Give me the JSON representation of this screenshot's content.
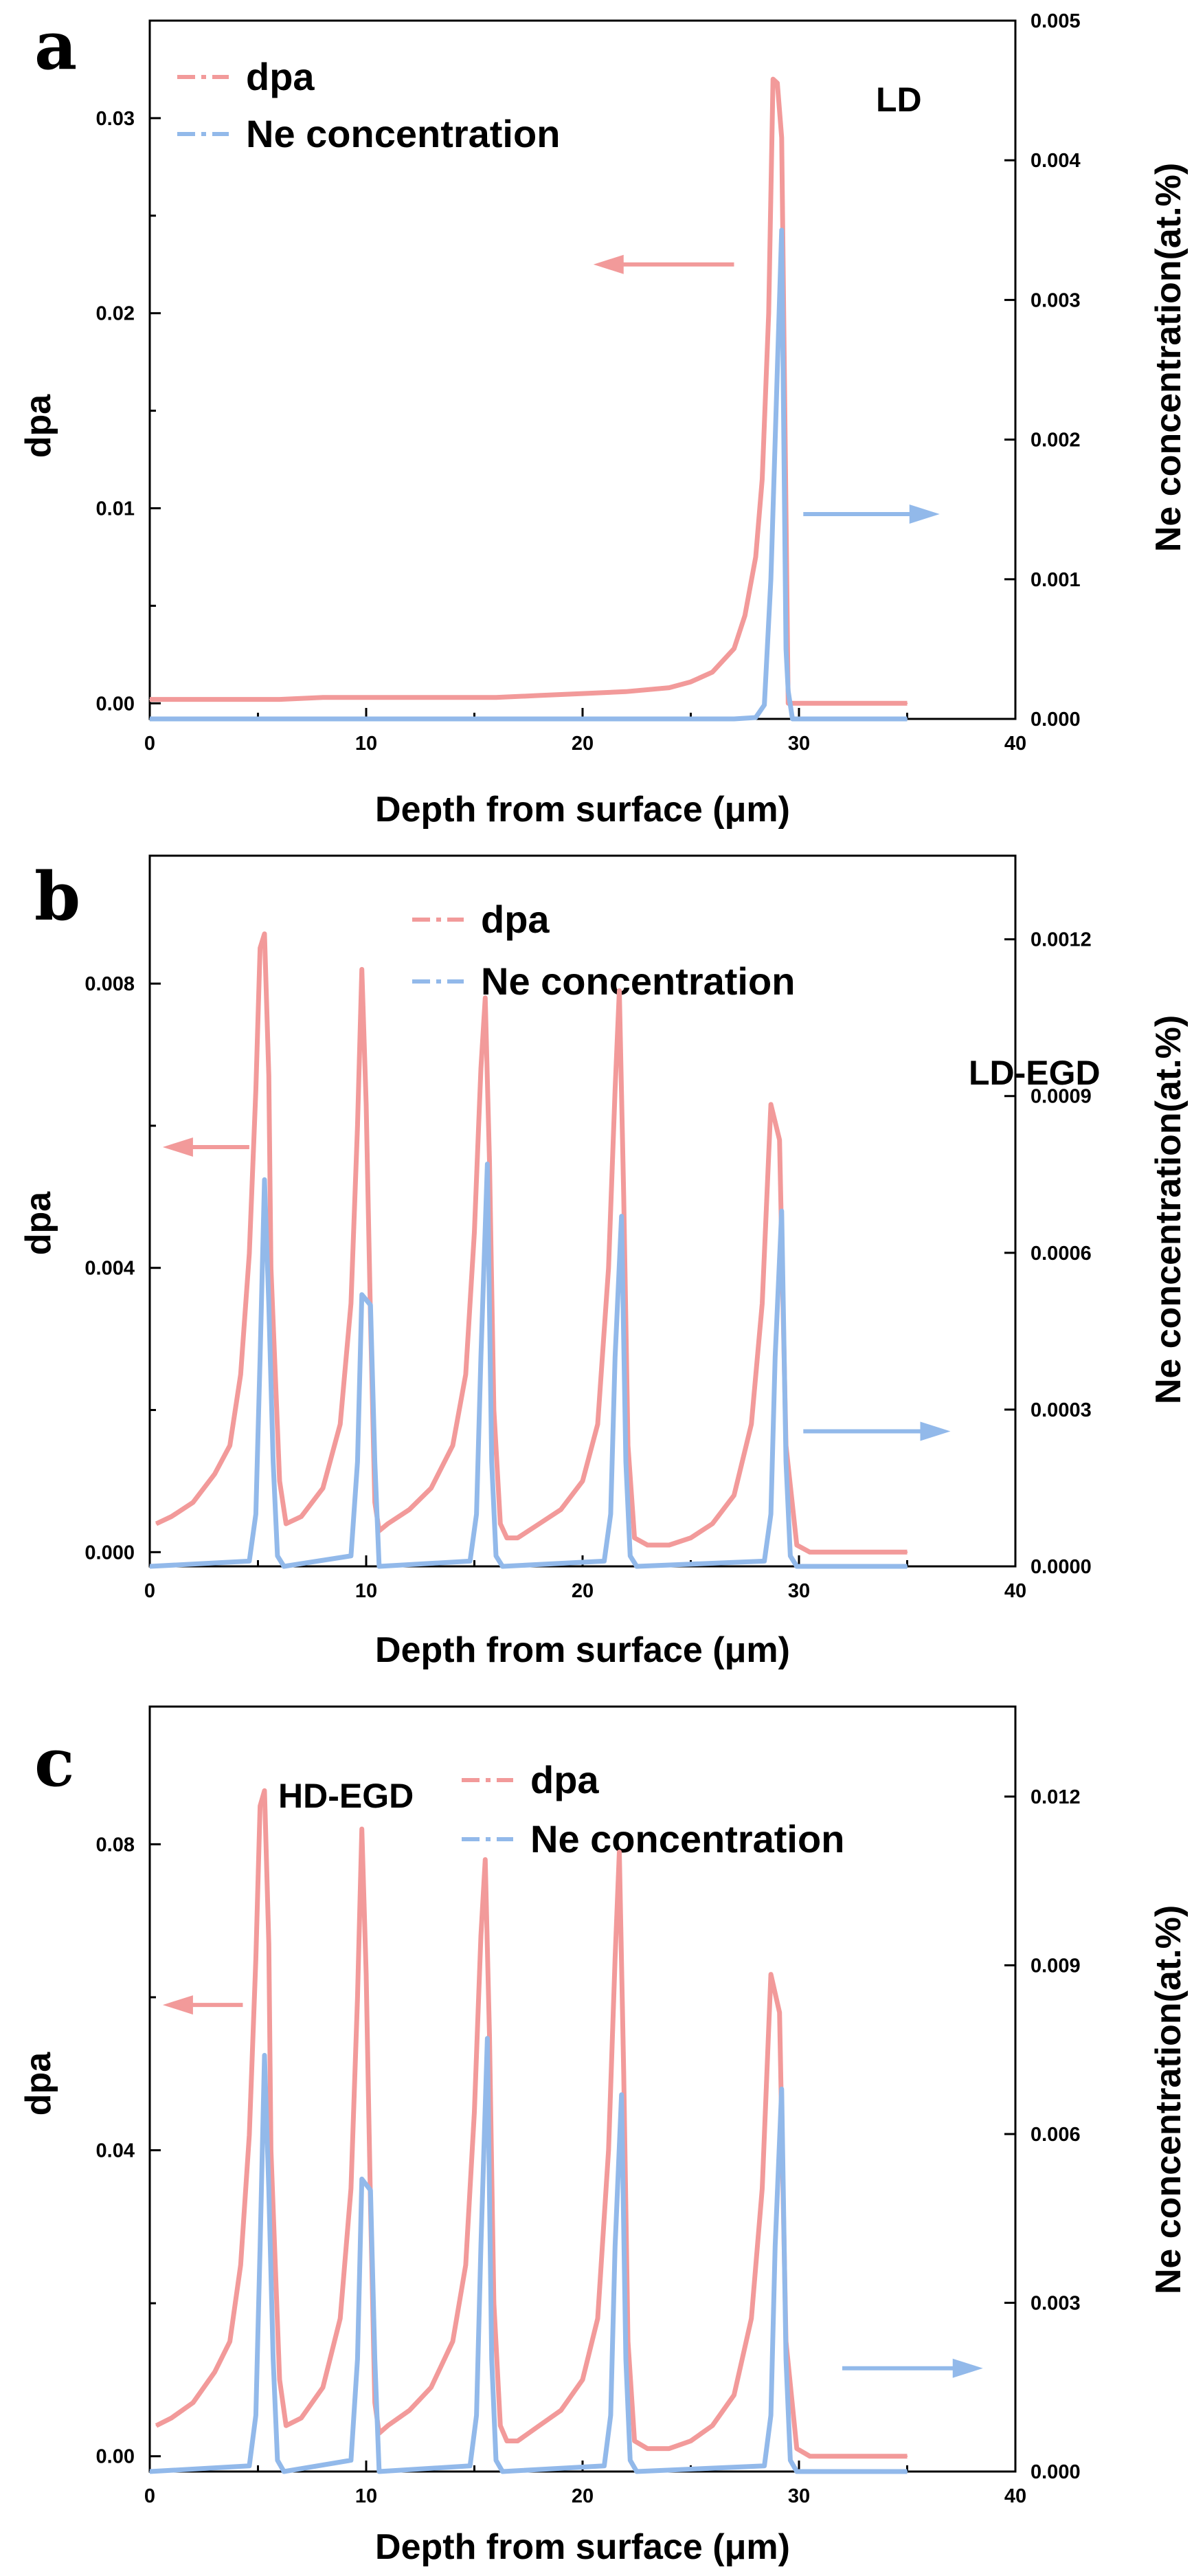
{
  "colors": {
    "dpa": "#f29a9a",
    "ne": "#92b9ea",
    "axis": "#000000"
  },
  "chart_data": [
    {
      "panel": "a",
      "type": "line",
      "annotation": "LD",
      "xlabel": "Depth from surface (μm)",
      "ylabel_left": "dpa",
      "ylabel_right": "Ne concentration(at.%)",
      "xlim": [
        0,
        40
      ],
      "xticks": [
        "0",
        "10",
        "20",
        "30",
        "40"
      ],
      "ylim_left": [
        -0.0008,
        0.035
      ],
      "yticks_left": [
        "0.00",
        "0.01",
        "0.02",
        "0.03"
      ],
      "ylim_right": [
        0,
        0.005
      ],
      "yticks_right": [
        "0.000",
        "0.001",
        "0.002",
        "0.003",
        "0.004",
        "0.005"
      ],
      "legend": [
        "dpa",
        "Ne concentration"
      ],
      "series": [
        {
          "name": "dpa",
          "axis": "left",
          "x": [
            0,
            2,
            4,
            6,
            8,
            10,
            12,
            14,
            16,
            18,
            20,
            22,
            24,
            25,
            26,
            27,
            27.5,
            28,
            28.3,
            28.6,
            28.8,
            29.0,
            29.2,
            29.5,
            30,
            35
          ],
          "y": [
            0.0002,
            0.0002,
            0.0002,
            0.0002,
            0.0003,
            0.0003,
            0.0003,
            0.0003,
            0.0003,
            0.0004,
            0.0005,
            0.0006,
            0.0008,
            0.0011,
            0.0016,
            0.0028,
            0.0045,
            0.0075,
            0.0115,
            0.02,
            0.032,
            0.0318,
            0.029,
            0.0,
            0.0,
            0.0
          ]
        },
        {
          "name": "Ne concentration",
          "axis": "right",
          "x": [
            0,
            10,
            20,
            27,
            28,
            28.4,
            28.7,
            29.0,
            29.2,
            29.4,
            29.5,
            29.7,
            30,
            35
          ],
          "y": [
            0.0,
            0.0,
            0.0,
            0.0,
            1e-05,
            0.0001,
            0.001,
            0.0025,
            0.0035,
            0.0005,
            0.0002,
            0.0,
            0.0,
            0.0
          ]
        }
      ],
      "arrows": [
        {
          "direction": "left",
          "x_from": 27,
          "x_to": 20.5,
          "y_data": 0.0225,
          "axis": "left"
        },
        {
          "direction": "right",
          "x_from": 30.2,
          "x_to": 36.5,
          "y_data": 0.0097,
          "axis": "left"
        }
      ]
    },
    {
      "panel": "b",
      "type": "line",
      "annotation": "LD-EGD",
      "xlabel": "Depth from surface (μm)",
      "ylabel_left": "dpa",
      "ylabel_right": "Ne concentration(at.%)",
      "xlim": [
        0,
        40
      ],
      "xticks": [
        "0",
        "10",
        "20",
        "30",
        "40"
      ],
      "ylim_left": [
        -0.0002,
        0.0098
      ],
      "yticks_left": [
        "0.000",
        "0.004",
        "0.008"
      ],
      "ylim_right": [
        0,
        0.00136
      ],
      "yticks_right": [
        "0.0000",
        "0.0003",
        "0.0006",
        "0.0009",
        "0.0012"
      ],
      "legend": [
        "dpa",
        "Ne concentration"
      ],
      "series": [
        {
          "name": "dpa",
          "axis": "left",
          "x": [
            0.3,
            1,
            2,
            3,
            3.7,
            4.2,
            4.6,
            4.9,
            5.1,
            5.3,
            5.5,
            5.6,
            6.0,
            6.3,
            7,
            8,
            8.8,
            9.3,
            9.6,
            9.8,
            10.0,
            10.2,
            10.4,
            10.6,
            11,
            12,
            13,
            14,
            14.6,
            15.0,
            15.3,
            15.5,
            15.7,
            15.9,
            16.2,
            16.5,
            17,
            18,
            19,
            20,
            20.7,
            21.2,
            21.5,
            21.7,
            21.9,
            22.1,
            22.4,
            23,
            24,
            25,
            26,
            27,
            27.8,
            28.3,
            28.7,
            29.1,
            29.4,
            29.9,
            30.5,
            35
          ],
          "y": [
            0.0004,
            0.0005,
            0.0007,
            0.0011,
            0.0015,
            0.0025,
            0.0042,
            0.0065,
            0.0085,
            0.0087,
            0.0067,
            0.004,
            0.001,
            0.0004,
            0.0005,
            0.0009,
            0.0018,
            0.0035,
            0.006,
            0.0082,
            0.0063,
            0.0033,
            0.0007,
            0.0003,
            0.0004,
            0.0006,
            0.0009,
            0.0015,
            0.0025,
            0.0045,
            0.0068,
            0.0078,
            0.0055,
            0.002,
            0.0004,
            0.0002,
            0.0002,
            0.0004,
            0.0006,
            0.001,
            0.0018,
            0.004,
            0.0065,
            0.0079,
            0.005,
            0.0015,
            0.0002,
            0.0001,
            0.0001,
            0.0002,
            0.0004,
            0.0008,
            0.0018,
            0.0035,
            0.0063,
            0.0058,
            0.0015,
            0.0001,
            0.0,
            0.0
          ]
        },
        {
          "name": "Ne concentration",
          "axis": "right",
          "x": [
            0,
            4.6,
            4.9,
            5.1,
            5.3,
            5.5,
            5.7,
            5.9,
            6.2,
            9.3,
            9.6,
            9.8,
            10.2,
            10.4,
            10.6,
            14.8,
            15.1,
            15.3,
            15.6,
            15.8,
            16.0,
            16.3,
            21.0,
            21.3,
            21.5,
            21.8,
            22.0,
            22.2,
            22.5,
            28.4,
            28.7,
            28.9,
            29.2,
            29.4,
            29.6,
            29.9,
            35
          ],
          "y": [
            0.0,
            1e-05,
            0.0001,
            0.0004,
            0.00074,
            0.0005,
            0.0002,
            2e-05,
            0.0,
            2e-05,
            0.0002,
            0.00052,
            0.0005,
            0.0002,
            0.0,
            1e-05,
            0.0001,
            0.0004,
            0.00077,
            0.0002,
            2e-05,
            0.0,
            1e-05,
            0.0001,
            0.0004,
            0.00067,
            0.0002,
            2e-05,
            0.0,
            1e-05,
            0.0001,
            0.0004,
            0.00068,
            0.0002,
            2e-05,
            0.0,
            0.0
          ]
        }
      ],
      "arrows": [
        {
          "direction": "left",
          "x_from": 4.6,
          "x_to": 0.6,
          "y_data": 0.0057,
          "axis": "left"
        },
        {
          "direction": "right",
          "x_from": 30.2,
          "x_to": 37.0,
          "y_data": 0.0017,
          "axis": "left"
        }
      ]
    },
    {
      "panel": "c",
      "type": "line",
      "annotation": "HD-EGD",
      "xlabel": "Depth from surface (μm)",
      "ylabel_left": "dpa",
      "ylabel_right": "Ne concentration(at.%)",
      "xlim": [
        0,
        40
      ],
      "xticks": [
        "0",
        "10",
        "20",
        "30",
        "40"
      ],
      "ylim_left": [
        -0.002,
        0.098
      ],
      "yticks_left": [
        "0.00",
        "0.04",
        "0.08"
      ],
      "ylim_right": [
        0,
        0.0136
      ],
      "yticks_right": [
        "0.000",
        "0.003",
        "0.006",
        "0.009",
        "0.012"
      ],
      "legend": [
        "dpa",
        "Ne concentration"
      ],
      "series": [
        {
          "name": "dpa",
          "axis": "left",
          "x": [
            0.3,
            1,
            2,
            3,
            3.7,
            4.2,
            4.6,
            4.9,
            5.1,
            5.3,
            5.5,
            5.6,
            6.0,
            6.3,
            7,
            8,
            8.8,
            9.3,
            9.6,
            9.8,
            10.0,
            10.2,
            10.4,
            10.6,
            11,
            12,
            13,
            14,
            14.6,
            15.0,
            15.3,
            15.5,
            15.7,
            15.9,
            16.2,
            16.5,
            17,
            18,
            19,
            20,
            20.7,
            21.2,
            21.5,
            21.7,
            21.9,
            22.1,
            22.4,
            23,
            24,
            25,
            26,
            27,
            27.8,
            28.3,
            28.7,
            29.1,
            29.4,
            29.9,
            30.5,
            35
          ],
          "y": [
            0.004,
            0.005,
            0.007,
            0.011,
            0.015,
            0.025,
            0.042,
            0.065,
            0.085,
            0.087,
            0.067,
            0.04,
            0.01,
            0.004,
            0.005,
            0.009,
            0.018,
            0.035,
            0.06,
            0.082,
            0.063,
            0.033,
            0.007,
            0.003,
            0.004,
            0.006,
            0.009,
            0.015,
            0.025,
            0.045,
            0.068,
            0.078,
            0.055,
            0.02,
            0.004,
            0.002,
            0.002,
            0.004,
            0.006,
            0.01,
            0.018,
            0.04,
            0.065,
            0.079,
            0.05,
            0.015,
            0.002,
            0.001,
            0.001,
            0.002,
            0.004,
            0.008,
            0.018,
            0.035,
            0.063,
            0.058,
            0.015,
            0.001,
            0.0,
            0.0
          ]
        },
        {
          "name": "Ne concentration",
          "axis": "right",
          "x": [
            0,
            4.6,
            4.9,
            5.1,
            5.3,
            5.5,
            5.7,
            5.9,
            6.2,
            9.3,
            9.6,
            9.8,
            10.2,
            10.4,
            10.6,
            14.8,
            15.1,
            15.3,
            15.6,
            15.8,
            16.0,
            16.3,
            21.0,
            21.3,
            21.5,
            21.8,
            22.0,
            22.2,
            22.5,
            28.4,
            28.7,
            28.9,
            29.2,
            29.4,
            29.6,
            29.9,
            35
          ],
          "y": [
            0.0,
            0.0001,
            0.001,
            0.004,
            0.0074,
            0.005,
            0.002,
            0.0002,
            0.0,
            0.0002,
            0.002,
            0.0052,
            0.005,
            0.002,
            0.0,
            0.0001,
            0.001,
            0.004,
            0.0077,
            0.002,
            0.0002,
            0.0,
            0.0001,
            0.001,
            0.004,
            0.0067,
            0.002,
            0.0002,
            0.0,
            0.0001,
            0.001,
            0.004,
            0.0068,
            0.002,
            0.0002,
            0.0,
            0.0
          ]
        }
      ],
      "arrows": [
        {
          "direction": "left",
          "x_from": 4.3,
          "x_to": 0.6,
          "y_data": 0.059,
          "axis": "left"
        },
        {
          "direction": "right",
          "x_from": 32.0,
          "x_to": 38.5,
          "y_data": 0.0115,
          "axis": "left"
        }
      ]
    }
  ]
}
